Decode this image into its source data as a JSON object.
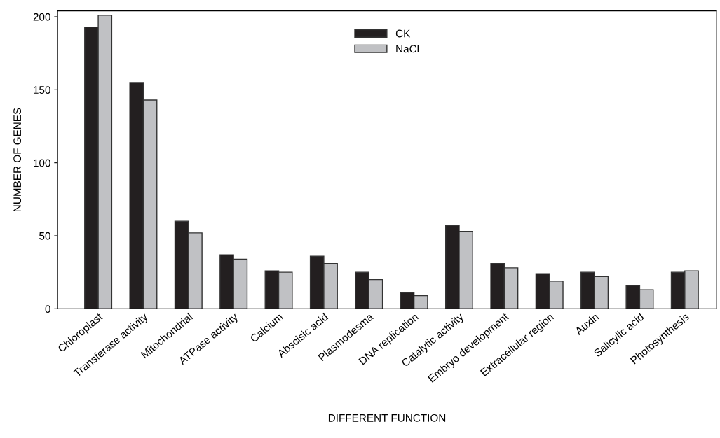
{
  "chart_data": {
    "type": "bar",
    "xlabel": "DIFFERENT FUNCTION",
    "ylabel": "NUMBER OF GENES",
    "categories": [
      "Chloroplast",
      "Transferase activity",
      "Mitochondrial",
      "ATPase activity",
      "Calcium",
      "Abscisic acid",
      "Plasmodesma",
      "DNA replication",
      "Catalytic activity",
      "Embryo development",
      "Extracellular region",
      "Auxin",
      "Salicylic acid",
      "Photosynthesis"
    ],
    "series": [
      {
        "name": "CK",
        "color": "#231f20",
        "values": [
          193,
          155,
          60,
          37,
          26,
          36,
          25,
          11,
          57,
          31,
          24,
          25,
          16,
          25
        ]
      },
      {
        "name": "NaCl",
        "color": "#c0c1c4",
        "values": [
          201,
          143,
          52,
          34,
          25,
          31,
          20,
          9,
          53,
          28,
          19,
          22,
          13,
          26
        ]
      }
    ],
    "ylim": [
      0,
      204
    ],
    "yticks": [
      0,
      50,
      100,
      150,
      200
    ],
    "grid": false,
    "legend": "top"
  }
}
